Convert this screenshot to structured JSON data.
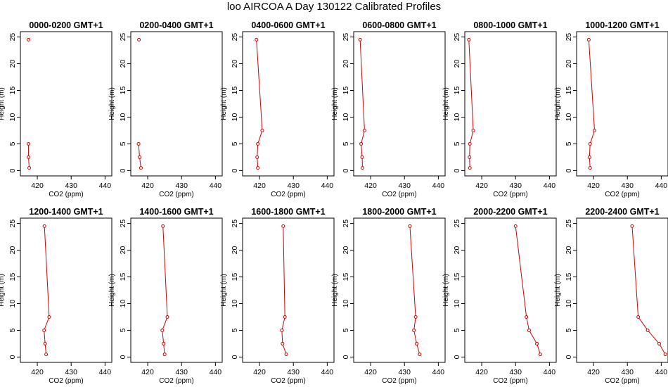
{
  "figure": {
    "title": "loo AIRCOA A  Day 130122  Calibrated Profiles",
    "line_color": "#d40000",
    "axis_color": "#000000"
  },
  "chart_data": [
    {
      "type": "line",
      "title": "0000-0200 GMT+1",
      "xlabel": "CO2 (ppm)",
      "ylabel": "Height (m)",
      "xlim": [
        415,
        442
      ],
      "ylim": [
        -1,
        26
      ],
      "x_ticks": [
        420,
        430,
        440
      ],
      "y_ticks": [
        0,
        5,
        10,
        15,
        20,
        25
      ],
      "grid": false,
      "series": [
        {
          "values": [
            {
              "x": 417.6,
              "y": 0.5,
              "link": false
            },
            {
              "x": 417.4,
              "y": 2.5,
              "link": true
            },
            {
              "x": 417.4,
              "y": 5.0,
              "link": true
            },
            {
              "x": 417.4,
              "y": 24.5,
              "link": false
            }
          ]
        }
      ]
    },
    {
      "type": "line",
      "title": "0200-0400 GMT+1",
      "xlabel": "CO2 (ppm)",
      "ylabel": "Height (m)",
      "xlim": [
        415,
        442
      ],
      "ylim": [
        -1,
        26
      ],
      "x_ticks": [
        420,
        430,
        440
      ],
      "y_ticks": [
        0,
        5,
        10,
        15,
        20,
        25
      ],
      "grid": false,
      "series": [
        {
          "values": [
            {
              "x": 418.0,
              "y": 0.5,
              "link": false
            },
            {
              "x": 417.6,
              "y": 2.5,
              "link": true
            },
            {
              "x": 417.3,
              "y": 5.0,
              "link": true
            },
            {
              "x": 417.4,
              "y": 24.5,
              "link": false
            }
          ]
        }
      ]
    },
    {
      "type": "line",
      "title": "0400-0600 GMT+1",
      "xlabel": "CO2 (ppm)",
      "ylabel": "Height (m)",
      "xlim": [
        415,
        442
      ],
      "ylim": [
        -1,
        26
      ],
      "x_ticks": [
        420,
        430,
        440
      ],
      "y_ticks": [
        0,
        5,
        10,
        15,
        20,
        25
      ],
      "grid": false,
      "series": [
        {
          "values": [
            {
              "x": 419.5,
              "y": 0.5,
              "link": false
            },
            {
              "x": 419.3,
              "y": 2.5,
              "link": true
            },
            {
              "x": 419.5,
              "y": 5.0,
              "link": true
            },
            {
              "x": 420.8,
              "y": 7.5,
              "link": true
            },
            {
              "x": 419.1,
              "y": 24.5,
              "link": true
            }
          ]
        }
      ]
    },
    {
      "type": "line",
      "title": "0600-0800 GMT+1",
      "xlabel": "CO2 (ppm)",
      "ylabel": "Height (m)",
      "xlim": [
        415,
        442
      ],
      "ylim": [
        -1,
        26
      ],
      "x_ticks": [
        420,
        430,
        440
      ],
      "y_ticks": [
        0,
        5,
        10,
        15,
        20,
        25
      ],
      "grid": false,
      "series": [
        {
          "values": [
            {
              "x": 417.6,
              "y": 0.5,
              "link": false
            },
            {
              "x": 417.5,
              "y": 2.5,
              "link": true
            },
            {
              "x": 417.2,
              "y": 5.0,
              "link": true
            },
            {
              "x": 418.2,
              "y": 7.5,
              "link": true
            },
            {
              "x": 416.9,
              "y": 24.5,
              "link": true
            }
          ]
        }
      ]
    },
    {
      "type": "line",
      "title": "0800-1000 GMT+1",
      "xlabel": "CO2 (ppm)",
      "ylabel": "Height (m)",
      "xlim": [
        415,
        442
      ],
      "ylim": [
        -1,
        26
      ],
      "x_ticks": [
        420,
        430,
        440
      ],
      "y_ticks": [
        0,
        5,
        10,
        15,
        20,
        25
      ],
      "grid": false,
      "series": [
        {
          "values": [
            {
              "x": 416.5,
              "y": 0.5,
              "link": false
            },
            {
              "x": 416.4,
              "y": 2.5,
              "link": true
            },
            {
              "x": 416.5,
              "y": 5.0,
              "link": true
            },
            {
              "x": 417.5,
              "y": 7.5,
              "link": true
            },
            {
              "x": 416.2,
              "y": 24.5,
              "link": true
            }
          ]
        }
      ]
    },
    {
      "type": "line",
      "title": "1000-1200 GMT+1",
      "xlabel": "CO2 (ppm)",
      "ylabel": "Height (m)",
      "xlim": [
        415,
        442
      ],
      "ylim": [
        -1,
        26
      ],
      "x_ticks": [
        420,
        430,
        440
      ],
      "y_ticks": [
        0,
        5,
        10,
        15,
        20,
        25
      ],
      "grid": false,
      "series": [
        {
          "values": [
            {
              "x": 419.0,
              "y": 0.5,
              "link": false
            },
            {
              "x": 418.8,
              "y": 2.5,
              "link": true
            },
            {
              "x": 419.0,
              "y": 5.0,
              "link": true
            },
            {
              "x": 420.3,
              "y": 7.5,
              "link": true
            },
            {
              "x": 418.6,
              "y": 24.5,
              "link": true
            }
          ]
        }
      ]
    },
    {
      "type": "line",
      "title": "1200-1400 GMT+1",
      "xlabel": "CO2 (ppm)",
      "ylabel": "Height (m)",
      "xlim": [
        415,
        442
      ],
      "ylim": [
        -1,
        26
      ],
      "x_ticks": [
        420,
        430,
        440
      ],
      "y_ticks": [
        0,
        5,
        10,
        15,
        20,
        25
      ],
      "grid": false,
      "series": [
        {
          "values": [
            {
              "x": 422.6,
              "y": 0.5,
              "link": false
            },
            {
              "x": 422.3,
              "y": 2.5,
              "link": true
            },
            {
              "x": 422.0,
              "y": 5.0,
              "link": true
            },
            {
              "x": 423.5,
              "y": 7.5,
              "link": true
            },
            {
              "x": 422.1,
              "y": 24.5,
              "link": true
            }
          ]
        }
      ]
    },
    {
      "type": "line",
      "title": "1400-1600 GMT+1",
      "xlabel": "CO2 (ppm)",
      "ylabel": "Height (m)",
      "xlim": [
        415,
        442
      ],
      "ylim": [
        -1,
        26
      ],
      "x_ticks": [
        420,
        430,
        440
      ],
      "y_ticks": [
        0,
        5,
        10,
        15,
        20,
        25
      ],
      "grid": false,
      "series": [
        {
          "values": [
            {
              "x": 425.0,
              "y": 0.5,
              "link": false
            },
            {
              "x": 424.7,
              "y": 2.5,
              "link": true
            },
            {
              "x": 424.3,
              "y": 5.0,
              "link": true
            },
            {
              "x": 425.8,
              "y": 7.5,
              "link": true
            },
            {
              "x": 424.5,
              "y": 24.5,
              "link": true
            }
          ]
        }
      ]
    },
    {
      "type": "line",
      "title": "1600-1800 GMT+1",
      "xlabel": "CO2 (ppm)",
      "ylabel": "Height (m)",
      "xlim": [
        415,
        442
      ],
      "ylim": [
        -1,
        26
      ],
      "x_ticks": [
        420,
        430,
        440
      ],
      "y_ticks": [
        0,
        5,
        10,
        15,
        20,
        25
      ],
      "grid": false,
      "series": [
        {
          "values": [
            {
              "x": 427.9,
              "y": 0.5,
              "link": false
            },
            {
              "x": 426.8,
              "y": 2.5,
              "link": true
            },
            {
              "x": 426.6,
              "y": 5.0,
              "link": true
            },
            {
              "x": 427.5,
              "y": 7.5,
              "link": true
            },
            {
              "x": 427.0,
              "y": 24.5,
              "link": true
            }
          ]
        }
      ]
    },
    {
      "type": "line",
      "title": "1800-2000 GMT+1",
      "xlabel": "CO2 (ppm)",
      "ylabel": "Height (m)",
      "xlim": [
        415,
        442
      ],
      "ylim": [
        -1,
        26
      ],
      "x_ticks": [
        420,
        430,
        440
      ],
      "y_ticks": [
        0,
        5,
        10,
        15,
        20,
        25
      ],
      "grid": false,
      "series": [
        {
          "values": [
            {
              "x": 434.5,
              "y": 0.5,
              "link": false
            },
            {
              "x": 433.6,
              "y": 2.5,
              "link": true
            },
            {
              "x": 432.8,
              "y": 5.0,
              "link": true
            },
            {
              "x": 433.3,
              "y": 7.5,
              "link": true
            },
            {
              "x": 431.6,
              "y": 24.5,
              "link": true
            }
          ]
        }
      ]
    },
    {
      "type": "line",
      "title": "2000-2200 GMT+1",
      "xlabel": "CO2 (ppm)",
      "ylabel": "Height (m)",
      "xlim": [
        415,
        442
      ],
      "ylim": [
        -1,
        26
      ],
      "x_ticks": [
        420,
        430,
        440
      ],
      "y_ticks": [
        0,
        5,
        10,
        15,
        20,
        25
      ],
      "grid": false,
      "series": [
        {
          "values": [
            {
              "x": 437.3,
              "y": 0.5,
              "link": false
            },
            {
              "x": 436.3,
              "y": 2.5,
              "link": true
            },
            {
              "x": 434.0,
              "y": 5.0,
              "link": true
            },
            {
              "x": 433.2,
              "y": 7.5,
              "link": true
            },
            {
              "x": 430.0,
              "y": 24.5,
              "link": true
            }
          ]
        }
      ]
    },
    {
      "type": "line",
      "title": "2200-2400 GMT+1",
      "xlabel": "CO2 (ppm)",
      "ylabel": "Height (m)",
      "xlim": [
        415,
        442
      ],
      "ylim": [
        -1,
        26
      ],
      "x_ticks": [
        420,
        430,
        440
      ],
      "y_ticks": [
        0,
        5,
        10,
        15,
        20,
        25
      ],
      "grid": false,
      "series": [
        {
          "values": [
            {
              "x": 441.2,
              "y": 0.5,
              "link": false
            },
            {
              "x": 439.4,
              "y": 2.5,
              "link": true
            },
            {
              "x": 436.0,
              "y": 5.0,
              "link": true
            },
            {
              "x": 433.2,
              "y": 7.5,
              "link": true
            },
            {
              "x": 431.4,
              "y": 24.5,
              "link": true
            }
          ]
        }
      ]
    }
  ]
}
